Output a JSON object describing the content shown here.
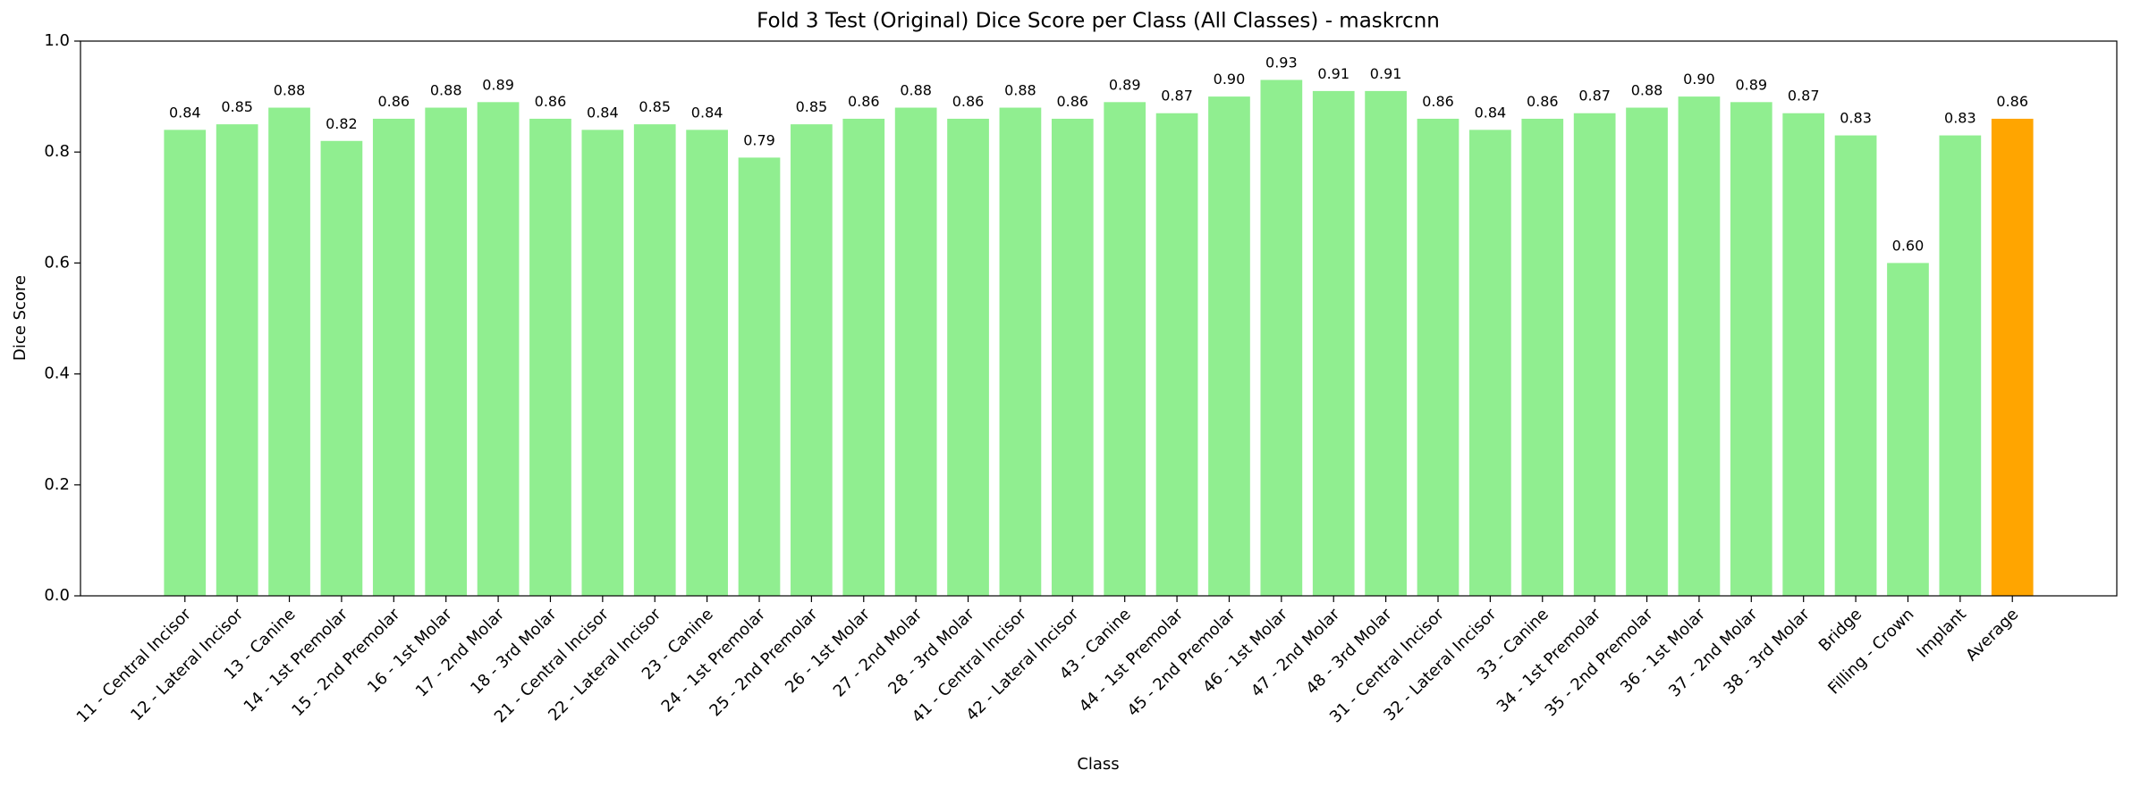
{
  "chart_data": {
    "type": "bar",
    "title": "Fold 3 Test (Original) Dice Score per Class (All Classes) - maskrcnn",
    "x_label": "Class",
    "y_label": "Dice Score",
    "categories": [
      "11 - Central Incisor",
      "12 - Lateral Incisor",
      "13 - Canine",
      "14 - 1st Premolar",
      "15 - 2nd Premolar",
      "16 - 1st Molar",
      "17 - 2nd Molar",
      "18 - 3rd Molar",
      "21 - Central Incisor",
      "22 - Lateral Incisor",
      "23 - Canine",
      "24 - 1st Premolar",
      "25 - 2nd Premolar",
      "26 - 1st Molar",
      "27 - 2nd Molar",
      "28 - 3rd Molar",
      "41 - Central Incisor",
      "42 - Lateral Incisor",
      "43 - Canine",
      "44 - 1st Premolar",
      "45 - 2nd Premolar",
      "46 - 1st Molar",
      "47 - 2nd Molar",
      "48 - 3rd Molar",
      "31 - Central Incisor",
      "32 - Lateral Incisor",
      "33 - Canine",
      "34 - 1st Premolar",
      "35 - 2nd Premolar",
      "36 - 1st Molar",
      "37 - 2nd Molar",
      "38 - 3rd Molar",
      "Bridge",
      "Filling - Crown",
      "Implant",
      "Average"
    ],
    "values": [
      0.84,
      0.85,
      0.88,
      0.82,
      0.86,
      0.88,
      0.89,
      0.86,
      0.84,
      0.85,
      0.84,
      0.79,
      0.85,
      0.86,
      0.88,
      0.86,
      0.88,
      0.86,
      0.89,
      0.87,
      0.9,
      0.93,
      0.91,
      0.91,
      0.86,
      0.84,
      0.86,
      0.87,
      0.88,
      0.9,
      0.89,
      0.87,
      0.83,
      0.6,
      0.83,
      0.86
    ],
    "value_labels": [
      "0.84",
      "0.85",
      "0.88",
      "0.82",
      "0.86",
      "0.88",
      "0.89",
      "0.86",
      "0.84",
      "0.85",
      "0.84",
      "0.79",
      "0.85",
      "0.86",
      "0.88",
      "0.86",
      "0.88",
      "0.86",
      "0.89",
      "0.87",
      "0.90",
      "0.93",
      "0.91",
      "0.91",
      "0.86",
      "0.84",
      "0.86",
      "0.87",
      "0.88",
      "0.90",
      "0.89",
      "0.87",
      "0.83",
      "0.60",
      "0.83",
      "0.86"
    ],
    "colors": [
      "#90ee90",
      "#90ee90",
      "#90ee90",
      "#90ee90",
      "#90ee90",
      "#90ee90",
      "#90ee90",
      "#90ee90",
      "#90ee90",
      "#90ee90",
      "#90ee90",
      "#90ee90",
      "#90ee90",
      "#90ee90",
      "#90ee90",
      "#90ee90",
      "#90ee90",
      "#90ee90",
      "#90ee90",
      "#90ee90",
      "#90ee90",
      "#90ee90",
      "#90ee90",
      "#90ee90",
      "#90ee90",
      "#90ee90",
      "#90ee90",
      "#90ee90",
      "#90ee90",
      "#90ee90",
      "#90ee90",
      "#90ee90",
      "#90ee90",
      "#90ee90",
      "#90ee90",
      "#ffa500"
    ],
    "ylim": [
      0,
      1
    ],
    "yticks": [
      {
        "value": 0,
        "label": "0.0"
      },
      {
        "value": 0.2,
        "label": "0.2"
      },
      {
        "value": 0.4,
        "label": "0.4"
      },
      {
        "value": 0.6,
        "label": "0.6"
      },
      {
        "value": 0.8,
        "label": "0.8"
      },
      {
        "value": 1,
        "label": "1.0"
      }
    ],
    "grid": false
  }
}
